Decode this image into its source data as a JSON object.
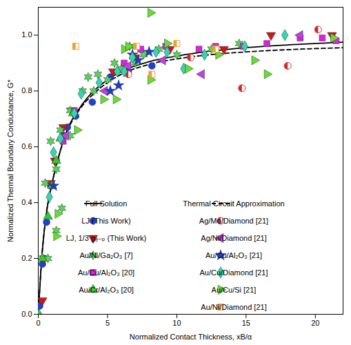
{
  "chart_data": {
    "type": "scatter",
    "xlabel": "Normalized Contact Thickness, xB/α",
    "ylabel": "Normalized Thermal Boundary Conductance, G*",
    "xlim": [
      0,
      22
    ],
    "ylim": [
      0,
      1.1
    ],
    "xticks": [
      0,
      5,
      10,
      15,
      20
    ],
    "yticks": [
      {
        "value": 0,
        "label": "0.0"
      },
      0.2,
      0.4,
      0.6,
      0.8,
      {
        "value": 1,
        "label": "1.0"
      }
    ],
    "grid": false,
    "legend": "bottom-right",
    "series": [
      {
        "name": "Full Solution",
        "type": "line",
        "color": "#000000",
        "line_style": "solid",
        "x": [
          0,
          0.25,
          0.5,
          1,
          1.5,
          2,
          3,
          4,
          5,
          6,
          8,
          10,
          12,
          15,
          18,
          22
        ],
        "values": [
          0,
          0.2,
          0.33,
          0.47,
          0.57,
          0.65,
          0.74,
          0.8,
          0.84,
          0.87,
          0.905,
          0.925,
          0.94,
          0.955,
          0.965,
          0.975
        ]
      },
      {
        "name": "Thermal Circuit Approximation",
        "type": "line",
        "color": "#000000",
        "line_style": "dashed",
        "x": [
          0,
          0.25,
          0.5,
          1,
          1.5,
          2,
          3,
          4,
          5,
          6,
          8,
          10,
          12,
          15,
          18,
          22
        ],
        "values": [
          0,
          0.2,
          0.33,
          0.47,
          0.57,
          0.645,
          0.735,
          0.79,
          0.83,
          0.86,
          0.895,
          0.915,
          0.928,
          0.94,
          0.948,
          0.955
        ]
      },
      {
        "name": "LJ (This Work)",
        "type": "scatter",
        "color": "#1f3fd6",
        "marker": "circle",
        "x": [
          0.1,
          0.3,
          0.4,
          0.6,
          0.9,
          1.3,
          1.8,
          2.1,
          2.7,
          3.9,
          5.2,
          6.5,
          8.2
        ],
        "values": [
          0.03,
          0.18,
          0.2,
          0.33,
          0.46,
          0.55,
          0.64,
          0.67,
          0.71,
          0.76,
          0.85,
          0.87,
          0.89
        ]
      },
      {
        "name": "LJ, 1/3 gₑ₋ₚ (This Work)",
        "type": "scatter",
        "color": "#d01515",
        "marker": "triangle_down",
        "x": [
          0.3,
          0.4,
          0.9,
          1.2,
          1.8,
          2.4,
          5.4,
          7,
          9.5,
          13.4,
          16.8,
          21.2
        ],
        "values": [
          0.05,
          0.2,
          0.47,
          0.55,
          0.67,
          0.73,
          0.87,
          0.92,
          0.95,
          0.95,
          1.0,
          1.0
        ]
      },
      {
        "name": "Au/Ni/Ga₂O₃ [7]",
        "type": "scatter",
        "color": "#55d455",
        "marker": "star6",
        "x": [
          0.7,
          1.3,
          1.7,
          0.5,
          0.9,
          1.6,
          2.3,
          3.2,
          3.6,
          4.3,
          5,
          5.5,
          6,
          7,
          7.6,
          8.7,
          2.3,
          1.3,
          4,
          10,
          12.5,
          14.5,
          6.6
        ],
        "values": [
          0.2,
          0.3,
          0.38,
          0.47,
          0.62,
          0.66,
          0.73,
          0.8,
          0.85,
          0.86,
          0.84,
          0.9,
          0.88,
          0.9,
          0.93,
          0.95,
          0.64,
          0.52,
          0.8,
          0.93,
          0.95,
          0.97,
          0.96
        ]
      },
      {
        "name": "Au/Cu/Al₂O₃ [20]",
        "type": "scatter",
        "color": "#e020e0",
        "marker": "square",
        "x": [
          1.8,
          2.6,
          6.2,
          7.4,
          9.2,
          11.6,
          12.8,
          14.8,
          16.5,
          18.9,
          20.5,
          21.5
        ],
        "values": [
          0.62,
          0.73,
          0.9,
          0.95,
          0.96,
          0.95,
          0.96,
          0.96,
          0.97,
          0.99,
          0.99,
          0.98
        ]
      },
      {
        "name": "Au/Cr/Al₂O₃ [20]",
        "type": "scatter",
        "color": "#2ecc2e",
        "marker": "triangle_up",
        "x": [
          0.05,
          0.3,
          0.7,
          1.0,
          1.3,
          1.6,
          2.5
        ],
        "values": [
          0.0,
          0.2,
          0.35,
          0.46,
          0.55,
          0.63,
          0.72
        ]
      },
      {
        "name": "Ag/Mo/Diamond [21]",
        "type": "scatter",
        "color": "#d42a2a",
        "marker": "half_circle",
        "x": [
          6.5,
          11,
          14.7,
          18,
          20.2
        ],
        "values": [
          0.86,
          0.92,
          0.81,
          0.89,
          1.02
        ]
      },
      {
        "name": "Ag/Ni/Diamond [21]",
        "type": "scatter",
        "color": "#c040e0",
        "marker": "triangle_left",
        "x": [
          2.0,
          4.8,
          6.5,
          9,
          11.8,
          18.9
        ],
        "values": [
          0.64,
          0.8,
          0.89,
          0.91,
          0.86,
          1.0
        ]
      },
      {
        "name": "Au/Cu/Al₂O₃ [21]",
        "type": "scatter",
        "color": "#1a3cc8",
        "marker": "star",
        "x": [
          1.1,
          5.2,
          5.8,
          6.8,
          7.2,
          8
        ],
        "values": [
          0.46,
          0.8,
          0.82,
          0.93,
          0.91,
          0.94
        ]
      },
      {
        "name": "Au/Cu/Diamond [21]",
        "type": "scatter",
        "color": "#33d6b0",
        "marker": "diamond",
        "x": [
          0.8,
          1.1,
          1.6,
          2.6,
          3.1,
          4.4,
          5.7,
          6.2,
          6.8,
          8.5,
          9.3,
          10.5,
          12,
          14.9,
          17.8
        ],
        "values": [
          0.42,
          0.58,
          0.63,
          0.72,
          0.79,
          0.83,
          0.87,
          0.87,
          0.92,
          0.94,
          0.94,
          0.88,
          0.93,
          0.96,
          1.0
        ]
      },
      {
        "name": "Au/Cu/Si [21]",
        "type": "scatter",
        "color": "#66dd33",
        "marker": "triangle_right",
        "x": [
          1.3,
          1.4,
          2.8,
          4.7,
          5.6,
          6.2,
          6.5,
          8.1,
          8.1,
          9.3,
          10.8,
          13,
          15.6,
          16.5,
          21.3
        ],
        "values": [
          0.28,
          0.36,
          0.66,
          0.77,
          0.77,
          0.95,
          0.96,
          0.84,
          1.08,
          0.97,
          0.88,
          0.93,
          0.91,
          0.86,
          0.99
        ]
      },
      {
        "name": "Au/Ni/Diamond [21]",
        "type": "scatter",
        "color": "#f0a030",
        "marker": "half_square",
        "x": [
          2.7,
          7.1,
          8.2,
          10,
          12.8
        ],
        "values": [
          0.96,
          0.96,
          0.86,
          0.97,
          0.95
        ]
      }
    ]
  }
}
